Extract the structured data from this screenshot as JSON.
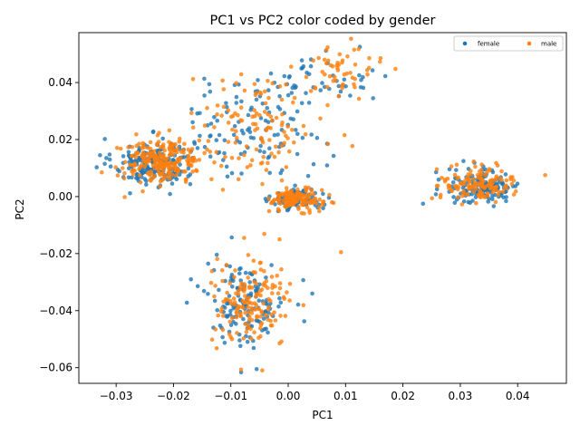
{
  "chart_data": {
    "type": "scatter",
    "title": "PC1 vs PC2 color coded by gender",
    "xlabel": "PC1",
    "ylabel": "PC2",
    "xlim": [
      -0.0365,
      0.0485
    ],
    "ylim": [
      -0.0655,
      0.0575
    ],
    "xticks": [
      -0.03,
      -0.02,
      -0.01,
      0.0,
      0.01,
      0.02,
      0.03,
      0.04
    ],
    "xtick_labels": [
      "−0.03",
      "−0.02",
      "−0.01",
      "0.00",
      "0.01",
      "0.02",
      "0.03",
      "0.04"
    ],
    "yticks": [
      -0.06,
      -0.04,
      -0.02,
      0.0,
      0.02,
      0.04
    ],
    "ytick_labels": [
      "−0.06",
      "−0.04",
      "−0.02",
      "0.00",
      "0.02",
      "0.04"
    ],
    "grid": false,
    "legend_position": "top-right",
    "colors": {
      "female": "#1f77b4",
      "male": "#ff7f0e"
    },
    "series": [
      {
        "name": "female",
        "clusters": [
          {
            "cx": -0.0235,
            "cy": 0.012,
            "sx": 0.0035,
            "sy": 0.0042,
            "n": 200
          },
          {
            "cx": 0.0015,
            "cy": -0.001,
            "sx": 0.0022,
            "sy": 0.0018,
            "n": 100
          },
          {
            "cx": 0.034,
            "cy": 0.0035,
            "sx": 0.0032,
            "sy": 0.0032,
            "n": 150
          },
          {
            "cx": -0.0075,
            "cy": -0.037,
            "sx": 0.0035,
            "sy": 0.0075,
            "n": 140
          },
          {
            "cx": -0.006,
            "cy": 0.025,
            "sx": 0.006,
            "sy": 0.009,
            "n": 110
          },
          {
            "cx": 0.007,
            "cy": 0.041,
            "sx": 0.0035,
            "sy": 0.0045,
            "n": 40
          }
        ],
        "points": [
          [
            0.0125,
            0.0525
          ],
          [
            0.0148,
            0.0345
          ],
          [
            -0.0328,
            0.0145
          ],
          [
            0.0235,
            -0.0025
          ],
          [
            -0.0055,
            -0.0605
          ],
          [
            0.0042,
            -0.034
          ]
        ]
      },
      {
        "name": "male",
        "clusters": [
          {
            "cx": -0.022,
            "cy": 0.0125,
            "sx": 0.0035,
            "sy": 0.0038,
            "n": 220
          },
          {
            "cx": 0.0015,
            "cy": -0.001,
            "sx": 0.0022,
            "sy": 0.0018,
            "n": 130
          },
          {
            "cx": 0.033,
            "cy": 0.0045,
            "sx": 0.0032,
            "sy": 0.003,
            "n": 140
          },
          {
            "cx": -0.0065,
            "cy": -0.038,
            "sx": 0.0035,
            "sy": 0.0075,
            "n": 160
          },
          {
            "cx": -0.005,
            "cy": 0.025,
            "sx": 0.006,
            "sy": 0.009,
            "n": 120
          },
          {
            "cx": 0.008,
            "cy": 0.043,
            "sx": 0.0035,
            "sy": 0.0045,
            "n": 50
          }
        ],
        "points": [
          [
            0.0161,
            0.0485
          ],
          [
            0.0448,
            0.0075
          ],
          [
            0.0092,
            -0.0195
          ],
          [
            -0.0325,
            0.0085
          ],
          [
            0.0115,
            0.0515
          ],
          [
            -0.0015,
            -0.015
          ]
        ]
      }
    ]
  }
}
